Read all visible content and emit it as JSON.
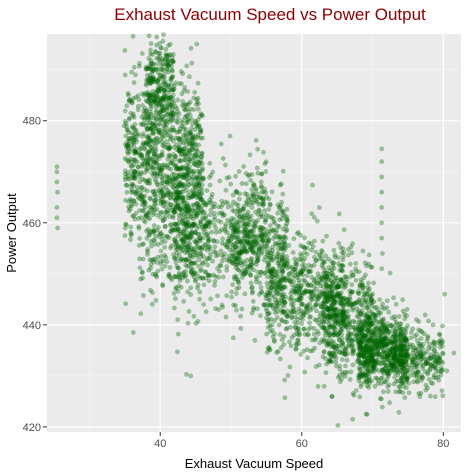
{
  "chart_data": {
    "type": "scatter",
    "title": "Exhaust Vacuum Speed vs Power Output",
    "xlabel": "Exhaust Vacuum Speed",
    "ylabel": "Power Output",
    "xlim": [
      24,
      82.5
    ],
    "ylim": [
      419,
      497
    ],
    "x_ticks": [
      40,
      60,
      80
    ],
    "y_ticks": [
      420,
      440,
      460,
      480
    ],
    "x_minor_ticks": [
      30,
      50,
      70
    ],
    "y_minor_ticks": [
      430,
      450,
      470,
      490
    ],
    "grid": true,
    "legend": "none",
    "point_color": "#006400",
    "point_opacity": 0.35,
    "panel_color": "#ebebeb",
    "title_color": "#8b0000",
    "clusters": [
      {
        "x_range": [
          35,
          46
        ],
        "y_mean": 472,
        "y_sd": 8,
        "count": 900
      },
      {
        "x_range": [
          38,
          42
        ],
        "y_mean": 486,
        "y_sd": 5,
        "count": 250
      },
      {
        "x_range": [
          37,
          47
        ],
        "y_mean": 456,
        "y_sd": 6,
        "count": 250
      },
      {
        "x_range": [
          42,
          55
        ],
        "y_mean": 458,
        "y_sd": 7,
        "count": 500
      },
      {
        "x_range": [
          50,
          58
        ],
        "y_mean": 455,
        "y_sd": 6,
        "count": 350
      },
      {
        "x_range": [
          55,
          66
        ],
        "y_mean": 446,
        "y_sd": 6,
        "count": 600
      },
      {
        "x_range": [
          63,
          70
        ],
        "y_mean": 441,
        "y_sd": 6,
        "count": 500
      },
      {
        "x_range": [
          68,
          75
        ],
        "y_mean": 435,
        "y_sd": 4,
        "count": 650
      },
      {
        "x_range": [
          73,
          80
        ],
        "y_mean": 433,
        "y_sd": 3,
        "count": 250
      }
    ],
    "outliers": [
      {
        "x": 25.4,
        "y": 471
      },
      {
        "x": 25.4,
        "y": 470
      },
      {
        "x": 25.5,
        "y": 466
      },
      {
        "x": 25.4,
        "y": 463
      },
      {
        "x": 25.4,
        "y": 461
      },
      {
        "x": 25.5,
        "y": 459
      },
      {
        "x": 25.4,
        "y": 468
      },
      {
        "x": 71.3,
        "y": 474.5
      },
      {
        "x": 71.3,
        "y": 472
      },
      {
        "x": 71.3,
        "y": 469
      },
      {
        "x": 71.3,
        "y": 466
      },
      {
        "x": 71.3,
        "y": 463
      },
      {
        "x": 71.3,
        "y": 460
      },
      {
        "x": 71.3,
        "y": 457
      },
      {
        "x": 71.4,
        "y": 454
      },
      {
        "x": 71.3,
        "y": 451
      },
      {
        "x": 67.2,
        "y": 421.5
      },
      {
        "x": 65.1,
        "y": 420.3
      },
      {
        "x": 80.2,
        "y": 446
      },
      {
        "x": 81.5,
        "y": 434.5
      },
      {
        "x": 39.5,
        "y": 494.8
      },
      {
        "x": 40.1,
        "y": 494.3
      },
      {
        "x": 38.9,
        "y": 493
      },
      {
        "x": 36.5,
        "y": 489
      },
      {
        "x": 35.5,
        "y": 485
      },
      {
        "x": 34.9,
        "y": 479
      },
      {
        "x": 36.2,
        "y": 438.5
      },
      {
        "x": 43.7,
        "y": 430.3
      },
      {
        "x": 44.3,
        "y": 430
      },
      {
        "x": 78.5,
        "y": 428.5
      },
      {
        "x": 80.5,
        "y": 431
      },
      {
        "x": 76.2,
        "y": 441
      }
    ]
  }
}
